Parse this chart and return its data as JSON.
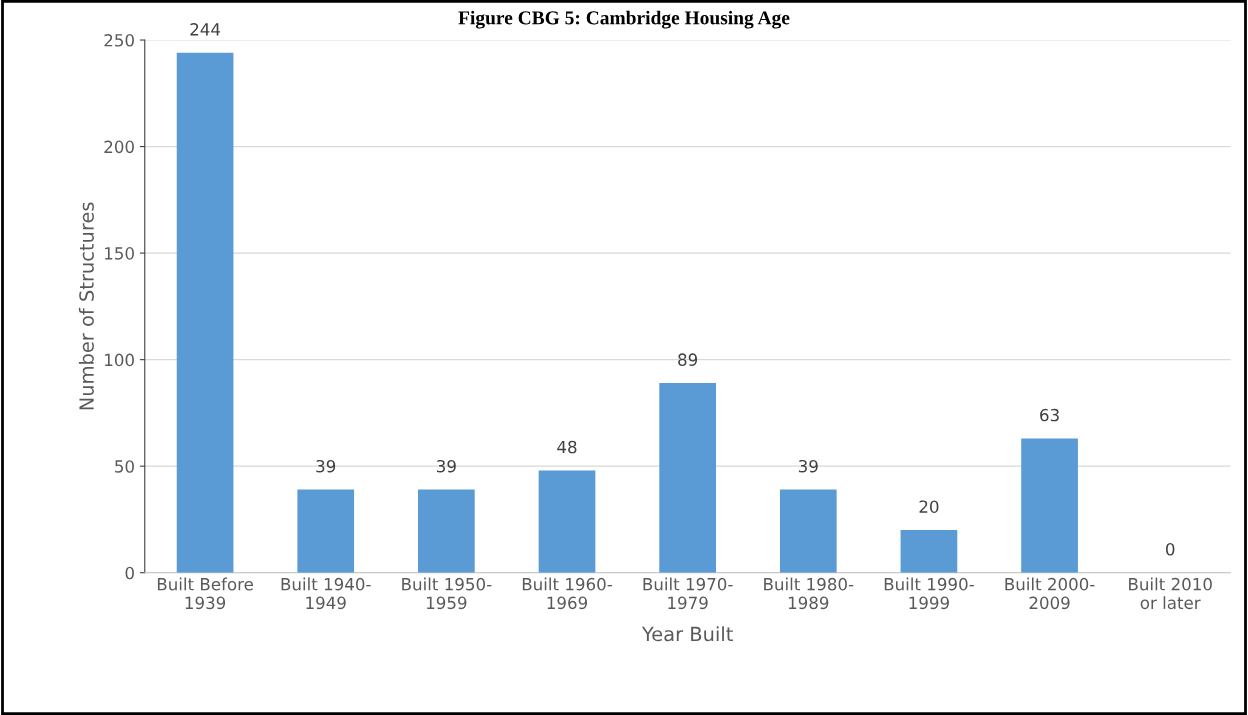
{
  "chart_data": {
    "type": "bar",
    "title": "Figure CBG 5: Cambridge Housing Age",
    "xlabel": "Year Built",
    "ylabel": "Number of Structures",
    "categories": [
      "Built Before\n1939",
      "Built 1940-\n1949",
      "Built 1950-\n1959",
      "Built 1960-\n1969",
      "Built 1970-\n1979",
      "Built 1980-\n1989",
      "Built 1990-\n1999",
      "Built 2000-\n2009",
      "Built 2010\nor later"
    ],
    "values": [
      244,
      39,
      39,
      48,
      89,
      39,
      20,
      63,
      0
    ],
    "color": "#5b9bd5",
    "ylim": [
      0,
      250
    ],
    "yticks": [
      0,
      50,
      100,
      150,
      200,
      250
    ],
    "grid": "y",
    "data_labels": true,
    "legend": false
  }
}
